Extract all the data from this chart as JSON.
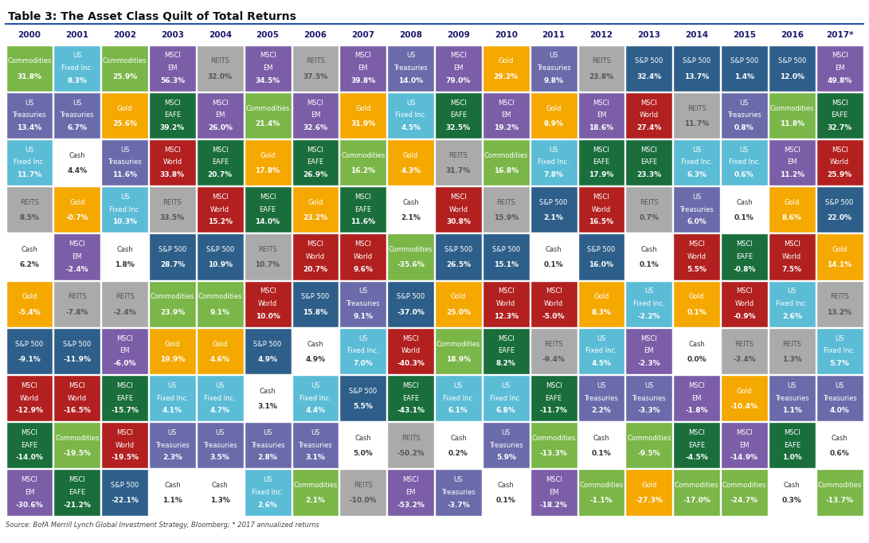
{
  "title": "Table 3: The Asset Class Quilt of Total Returns",
  "years": [
    "2000",
    "2001",
    "2002",
    "2003",
    "2004",
    "2005",
    "2006",
    "2007",
    "2008",
    "2009",
    "2010",
    "2011",
    "2012",
    "2013",
    "2014",
    "2015",
    "2016",
    "2017*"
  ],
  "source": "Source: BofA Merrill Lynch Global Investment Strategy, Bloomberg; * 2017 annualized returns",
  "colors": {
    "Commodities": "#7ab648",
    "US Fixed Inc.": "#5bbcd6",
    "US Treasuries": "#6b6bab",
    "Gold": "#f5a800",
    "REITS": "#aaaaaa",
    "Cash": "#ffffff",
    "S&P 500": "#2e5f8a",
    "MSCI World": "#b22020",
    "MSCI EAFE": "#1a6e3c",
    "MSCI EM": "#7b5ea7"
  },
  "text_colors": {
    "Commodities": "#ffffff",
    "US Fixed Inc.": "#ffffff",
    "US Treasuries": "#ffffff",
    "Gold": "#ffffff",
    "REITS": "#555555",
    "Cash": "#333333",
    "S&P 500": "#ffffff",
    "MSCI World": "#ffffff",
    "MSCI EAFE": "#ffffff",
    "MSCI EM": "#ffffff"
  },
  "table": [
    [
      [
        "Commodities",
        "31.8%"
      ],
      [
        "US Fixed Inc.",
        "8.3%"
      ],
      [
        "Commodities",
        "25.9%"
      ],
      [
        "MSCI EM",
        "56.3%"
      ],
      [
        "REITS",
        "32.0%"
      ],
      [
        "MSCI EM",
        "34.5%"
      ],
      [
        "REITS",
        "37.5%"
      ],
      [
        "MSCI EM",
        "39.8%"
      ],
      [
        "US Treasuries",
        "14.0%"
      ],
      [
        "MSCI EM",
        "79.0%"
      ],
      [
        "Gold",
        "29.2%"
      ],
      [
        "US Treasuries",
        "9.8%"
      ],
      [
        "REITS",
        "23.8%"
      ],
      [
        "S&P 500",
        "32.4%"
      ],
      [
        "S&P 500",
        "13.7%"
      ],
      [
        "S&P 500",
        "1.4%"
      ],
      [
        "S&P 500",
        "12.0%"
      ],
      [
        "MSCI EM",
        "49.8%"
      ]
    ],
    [
      [
        "US Treasuries",
        "13.4%"
      ],
      [
        "US Treasuries",
        "6.7%"
      ],
      [
        "Gold",
        "25.6%"
      ],
      [
        "MSCI EAFE",
        "39.2%"
      ],
      [
        "MSCI EM",
        "26.0%"
      ],
      [
        "Commodities",
        "21.4%"
      ],
      [
        "MSCI EM",
        "32.6%"
      ],
      [
        "Gold",
        "31.9%"
      ],
      [
        "US Fixed Inc.",
        "4.5%"
      ],
      [
        "MSCI EAFE",
        "32.5%"
      ],
      [
        "MSCI EM",
        "19.2%"
      ],
      [
        "Gold",
        "8.9%"
      ],
      [
        "MSCI EM",
        "18.6%"
      ],
      [
        "MSCI World",
        "27.4%"
      ],
      [
        "REITS",
        "11.7%"
      ],
      [
        "US Treasuries",
        "0.8%"
      ],
      [
        "Commodities",
        "11.8%"
      ],
      [
        "MSCI EAFE",
        "32.7%"
      ]
    ],
    [
      [
        "US Fixed Inc.",
        "11.7%"
      ],
      [
        "Cash",
        "4.4%"
      ],
      [
        "US Treasuries",
        "11.6%"
      ],
      [
        "MSCI World",
        "33.8%"
      ],
      [
        "MSCI EAFE",
        "20.7%"
      ],
      [
        "Gold",
        "17.8%"
      ],
      [
        "MSCI EAFE",
        "26.9%"
      ],
      [
        "Commodities",
        "16.2%"
      ],
      [
        "Gold",
        "4.3%"
      ],
      [
        "REITS",
        "31.7%"
      ],
      [
        "Commodities",
        "16.8%"
      ],
      [
        "US Fixed Inc.",
        "7.8%"
      ],
      [
        "MSCI EAFE",
        "17.9%"
      ],
      [
        "MSCI EAFE",
        "23.3%"
      ],
      [
        "US Fixed Inc.",
        "6.3%"
      ],
      [
        "US Fixed Inc.",
        "0.6%"
      ],
      [
        "MSCI EM",
        "11.2%"
      ],
      [
        "MSCI World",
        "25.9%"
      ]
    ],
    [
      [
        "REITS",
        "8.5%"
      ],
      [
        "Gold",
        "-0.7%"
      ],
      [
        "US Fixed Inc.",
        "10.3%"
      ],
      [
        "REITS",
        "33.5%"
      ],
      [
        "MSCI World",
        "15.2%"
      ],
      [
        "MSCI EAFE",
        "14.0%"
      ],
      [
        "Gold",
        "23.2%"
      ],
      [
        "MSCI EAFE",
        "11.6%"
      ],
      [
        "Cash",
        "2.1%"
      ],
      [
        "MSCI World",
        "30.8%"
      ],
      [
        "REITS",
        "15.9%"
      ],
      [
        "S&P 500",
        "2.1%"
      ],
      [
        "MSCI World",
        "16.5%"
      ],
      [
        "REITS",
        "0.7%"
      ],
      [
        "US Treasuries",
        "6.0%"
      ],
      [
        "Cash",
        "0.1%"
      ],
      [
        "Gold",
        "8.6%"
      ],
      [
        "S&P 500",
        "22.0%"
      ]
    ],
    [
      [
        "Cash",
        "6.2%"
      ],
      [
        "MSCI EM",
        "-2.4%"
      ],
      [
        "Cash",
        "1.8%"
      ],
      [
        "S&P 500",
        "28.7%"
      ],
      [
        "S&P 500",
        "10.9%"
      ],
      [
        "REITS",
        "10.7%"
      ],
      [
        "MSCI World",
        "20.7%"
      ],
      [
        "MSCI World",
        "9.6%"
      ],
      [
        "Commodities",
        "-35.6%"
      ],
      [
        "S&P 500",
        "26.5%"
      ],
      [
        "S&P 500",
        "15.1%"
      ],
      [
        "Cash",
        "0.1%"
      ],
      [
        "S&P 500",
        "16.0%"
      ],
      [
        "Cash",
        "0.1%"
      ],
      [
        "MSCI World",
        "5.5%"
      ],
      [
        "MSCI EAFE",
        "-0.8%"
      ],
      [
        "MSCI World",
        "7.5%"
      ],
      [
        "Gold",
        "14.1%"
      ]
    ],
    [
      [
        "Gold",
        "-5.4%"
      ],
      [
        "REITS",
        "-7.8%"
      ],
      [
        "REITS",
        "-2.4%"
      ],
      [
        "Commodities",
        "23.9%"
      ],
      [
        "Commodities",
        "9.1%"
      ],
      [
        "MSCI World",
        "10.0%"
      ],
      [
        "S&P 500",
        "15.8%"
      ],
      [
        "US Treasuries",
        "9.1%"
      ],
      [
        "S&P 500",
        "-37.0%"
      ],
      [
        "Gold",
        "25.0%"
      ],
      [
        "MSCI World",
        "12.3%"
      ],
      [
        "MSCI World",
        "-5.0%"
      ],
      [
        "Gold",
        "8.3%"
      ],
      [
        "US Fixed Inc.",
        "-2.2%"
      ],
      [
        "Gold",
        "0.1%"
      ],
      [
        "MSCI World",
        "-0.9%"
      ],
      [
        "US Fixed Inc.",
        "2.6%"
      ],
      [
        "REITS",
        "13.2%"
      ]
    ],
    [
      [
        "S&P 500",
        "-9.1%"
      ],
      [
        "S&P 500",
        "-11.9%"
      ],
      [
        "MSCI EM",
        "-6.0%"
      ],
      [
        "Gold",
        "19.9%"
      ],
      [
        "Gold",
        "4.6%"
      ],
      [
        "S&P 500",
        "4.9%"
      ],
      [
        "Cash",
        "4.9%"
      ],
      [
        "US Fixed Inc.",
        "7.0%"
      ],
      [
        "MSCI World",
        "-40.3%"
      ],
      [
        "Commodities",
        "18.9%"
      ],
      [
        "MSCI EAFE",
        "8.2%"
      ],
      [
        "REITS",
        "-9.4%"
      ],
      [
        "US Fixed Inc.",
        "4.5%"
      ],
      [
        "MSCI EM",
        "-2.3%"
      ],
      [
        "Cash",
        "0.0%"
      ],
      [
        "REITS",
        "-3.4%"
      ],
      [
        "REITS",
        "1.3%"
      ],
      [
        "US Fixed Inc.",
        "5.7%"
      ]
    ],
    [
      [
        "MSCI World",
        "-12.9%"
      ],
      [
        "MSCI World",
        "-16.5%"
      ],
      [
        "MSCI EAFE",
        "-15.7%"
      ],
      [
        "US Fixed Inc.",
        "4.1%"
      ],
      [
        "US Fixed Inc.",
        "4.7%"
      ],
      [
        "Cash",
        "3.1%"
      ],
      [
        "US Fixed Inc.",
        "4.4%"
      ],
      [
        "S&P 500",
        "5.5%"
      ],
      [
        "MSCI EAFE",
        "-43.1%"
      ],
      [
        "US Fixed Inc.",
        "6.1%"
      ],
      [
        "US Fixed Inc.",
        "6.8%"
      ],
      [
        "MSCI EAFE",
        "-11.7%"
      ],
      [
        "US Treasuries",
        "2.2%"
      ],
      [
        "US Treasuries",
        "-3.3%"
      ],
      [
        "MSCI EM",
        "-1.8%"
      ],
      [
        "Gold",
        "-10.4%"
      ],
      [
        "US Treasuries",
        "1.1%"
      ],
      [
        "US Treasuries",
        "4.0%"
      ]
    ],
    [
      [
        "MSCI EAFE",
        "-14.0%"
      ],
      [
        "Commodities",
        "-19.5%"
      ],
      [
        "MSCI World",
        "-19.5%"
      ],
      [
        "US Treasuries",
        "2.3%"
      ],
      [
        "US Treasuries",
        "3.5%"
      ],
      [
        "US Treasuries",
        "2.8%"
      ],
      [
        "US Treasuries",
        "3.1%"
      ],
      [
        "Cash",
        "5.0%"
      ],
      [
        "REITS",
        "-50.2%"
      ],
      [
        "Cash",
        "0.2%"
      ],
      [
        "US Treasuries",
        "5.9%"
      ],
      [
        "Commodities",
        "-13.3%"
      ],
      [
        "Cash",
        "0.1%"
      ],
      [
        "Commodities",
        "-9.5%"
      ],
      [
        "MSCI EAFE",
        "-4.5%"
      ],
      [
        "MSCI EM",
        "-14.9%"
      ],
      [
        "MSCI EAFE",
        "1.0%"
      ],
      [
        "Cash",
        "0.6%"
      ]
    ],
    [
      [
        "MSCI EM",
        "-30.6%"
      ],
      [
        "MSCI EAFE",
        "-21.2%"
      ],
      [
        "S&P 500",
        "-22.1%"
      ],
      [
        "Cash",
        "1.1%"
      ],
      [
        "Cash",
        "1.3%"
      ],
      [
        "US Fixed Inc.",
        "2.6%"
      ],
      [
        "Commodities",
        "2.1%"
      ],
      [
        "REITS",
        "-10.0%"
      ],
      [
        "MSCI EM",
        "-53.2%"
      ],
      [
        "US Treasuries",
        "-3.7%"
      ],
      [
        "Cash",
        "0.1%"
      ],
      [
        "MSCI EM",
        "-18.2%"
      ],
      [
        "Commodities",
        "-1.1%"
      ],
      [
        "Gold",
        "-27.3%"
      ],
      [
        "Commodities",
        "-17.0%"
      ],
      [
        "Commodities",
        "-24.7%"
      ],
      [
        "Cash",
        "0.3%"
      ],
      [
        "Commodities",
        "-13.7%"
      ]
    ]
  ],
  "two_word_assets": [
    "US Treasuries",
    "US Fixed Inc.",
    "MSCI World",
    "MSCI EAFE",
    "MSCI EM"
  ],
  "title_fontsize": 10,
  "year_fontsize": 7.5,
  "asset_fontsize": 6.0,
  "val_fontsize": 6.5,
  "source_fontsize": 6.0
}
